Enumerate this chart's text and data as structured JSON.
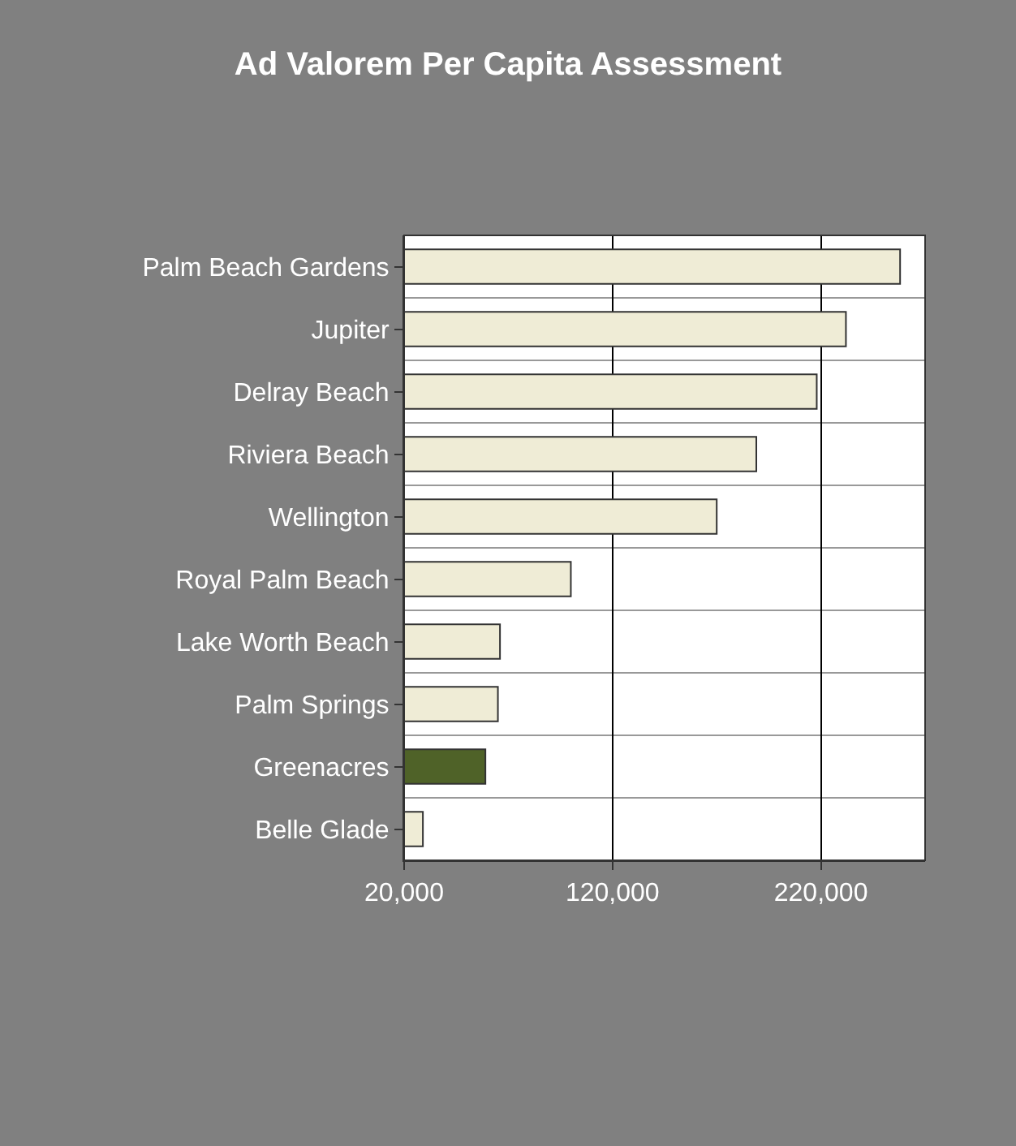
{
  "chart_data": {
    "type": "bar",
    "orientation": "horizontal",
    "title": "Ad Valorem Per Capita Assessment",
    "categories": [
      "Palm Beach Gardens",
      "Jupiter",
      "Delray Beach",
      "Riviera Beach",
      "Wellington",
      "Royal Palm Beach",
      "Lake Worth Beach",
      "Palm Springs",
      "Greenacres",
      "Belle Glade"
    ],
    "values": [
      258000,
      232000,
      218000,
      189000,
      170000,
      100000,
      66000,
      65000,
      59000,
      29000
    ],
    "colors": [
      "#efecd6",
      "#efecd6",
      "#efecd6",
      "#efecd6",
      "#efecd6",
      "#efecd6",
      "#efecd6",
      "#efecd6",
      "#4f6228",
      "#efecd6"
    ],
    "xlim": [
      20000,
      270000
    ],
    "xticks": [
      {
        "value": 20000,
        "label": "20,000"
      },
      {
        "value": 120000,
        "label": "120,000"
      },
      {
        "value": 220000,
        "label": "220,000"
      }
    ],
    "grid": true
  }
}
